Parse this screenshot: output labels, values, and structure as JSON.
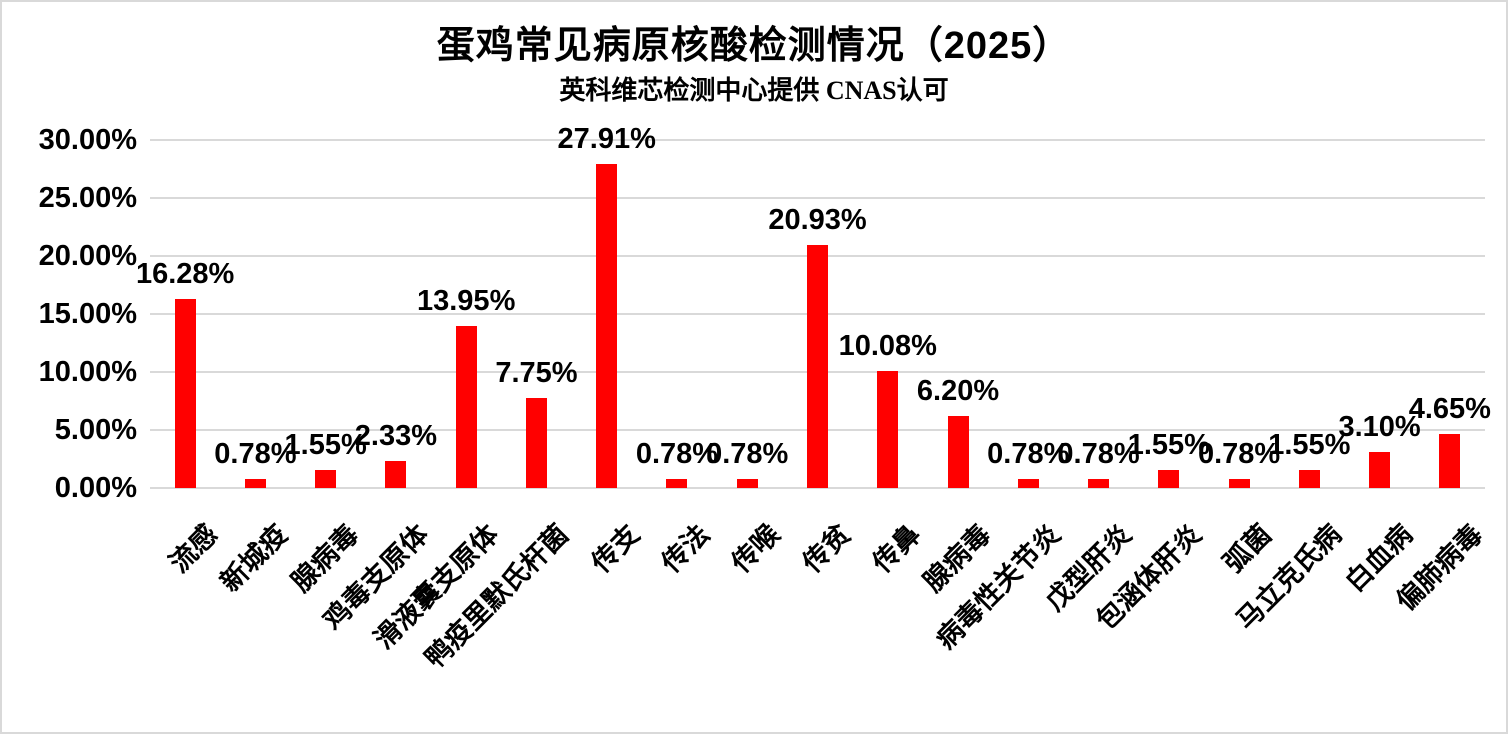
{
  "chart_data": {
    "type": "bar",
    "title": "蛋鸡常见病原核酸检测情况（2025）",
    "subtitle": "英科维芯检测中心提供 CNAS认可",
    "xlabel": "",
    "ylabel": "",
    "ylim": [
      0,
      30
    ],
    "y_tick_labels": [
      "30.00%",
      "25.00%",
      "20.00%",
      "15.00%",
      "10.00%",
      "5.00%",
      "0.00%"
    ],
    "grid": true,
    "legend": false,
    "bar_color": "#ff0000",
    "gridline_color": "#d9d9d9",
    "categories": [
      "流感",
      "新城疫",
      "腺病毒",
      "鸡毒支原体",
      "滑液囊支原体",
      "鸭疫里默氏杆菌",
      "传支",
      "传法",
      "传喉",
      "传贫",
      "传鼻",
      "腺病毒",
      "病毒性关节炎",
      "戊型肝炎",
      "包涵体肝炎",
      "弧菌",
      "马立克氏病",
      "白血病",
      "偏肺病毒"
    ],
    "values": [
      16.28,
      0.78,
      1.55,
      2.33,
      13.95,
      7.75,
      27.91,
      0.78,
      0.78,
      20.93,
      10.08,
      6.2,
      0.78,
      0.78,
      1.55,
      0.78,
      1.55,
      3.1,
      4.65
    ],
    "data_labels": [
      "16.28%",
      "0.78%",
      "1.55%",
      "2.33%",
      "13.95%",
      "7.75%",
      "27.91%",
      "0.78%",
      "0.78%",
      "20.93%",
      "10.08%",
      "6.20%",
      "0.78%",
      "0.78%",
      "1.55%",
      "0.78%",
      "1.55%",
      "3.10%",
      "4.65%"
    ]
  }
}
